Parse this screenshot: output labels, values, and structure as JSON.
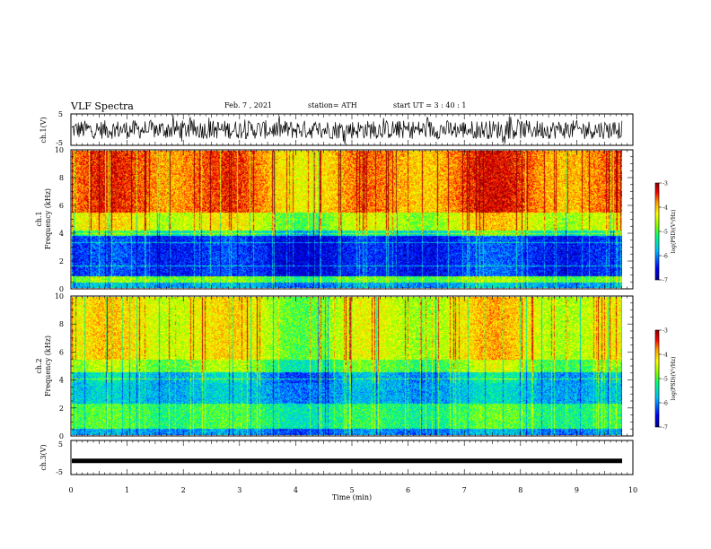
{
  "header": {
    "title": "VLF Spectra",
    "date": "Feb. 7 , 2021",
    "station": "station= ATH",
    "start": "start UT = 3 : 40 : 1"
  },
  "chart_data": [
    {
      "type": "line",
      "panel": "ch1-waveform",
      "ylabel": "ch.1(V)",
      "ylim": [
        -5,
        5
      ],
      "yticks": [
        "5",
        "-5"
      ],
      "xlim": [
        0,
        10
      ],
      "color": "#000000"
    },
    {
      "type": "heatmap",
      "panel": "ch1-spectrogram",
      "ylabel": "ch.1\nFrequency (kHz)",
      "ylabel_lines": [
        "ch.1",
        "Frequency (kHz)"
      ],
      "ylim": [
        0,
        10
      ],
      "yticks": [
        "0",
        "2",
        "4",
        "6",
        "8",
        "10"
      ],
      "xlim": [
        0,
        9.8
      ],
      "colorbar": {
        "label": "log(PSD)(V²/Hz)",
        "range": [
          -7,
          -3
        ],
        "ticks": [
          "-3",
          "-4",
          "-5",
          "-6",
          "-7"
        ]
      }
    },
    {
      "type": "heatmap",
      "panel": "ch2-spectrogram",
      "ylabel": "ch.2\nFrequency (kHz)",
      "ylabel_lines": [
        "ch.2",
        "Frequency (kHz)"
      ],
      "ylim": [
        0,
        10
      ],
      "yticks": [
        "0",
        "2",
        "4",
        "6",
        "8",
        "10"
      ],
      "xlim": [
        0,
        9.8
      ],
      "colorbar": {
        "label": "log(PSD)(V²/Hz)",
        "range": [
          -7,
          -3
        ],
        "ticks": [
          "-3",
          "-4",
          "-5",
          "-6",
          "-7"
        ]
      }
    },
    {
      "type": "line",
      "panel": "ch3-waveform",
      "ylabel": "ch.3(V)",
      "ylim": [
        -5,
        5
      ],
      "yticks": [
        "5",
        "-5"
      ],
      "xlim": [
        0,
        10
      ],
      "xlabel": "Time (min)",
      "xticks": [
        "0",
        "1",
        "2",
        "3",
        "4",
        "5",
        "6",
        "7",
        "8",
        "9",
        "10"
      ],
      "values_constant": -1,
      "color": "#000000"
    }
  ],
  "colors": {
    "scale": [
      "#00008f",
      "#0000ff",
      "#00bfff",
      "#00ff80",
      "#80ff00",
      "#ffff00",
      "#ffa000",
      "#ff0000",
      "#8f0000"
    ]
  }
}
